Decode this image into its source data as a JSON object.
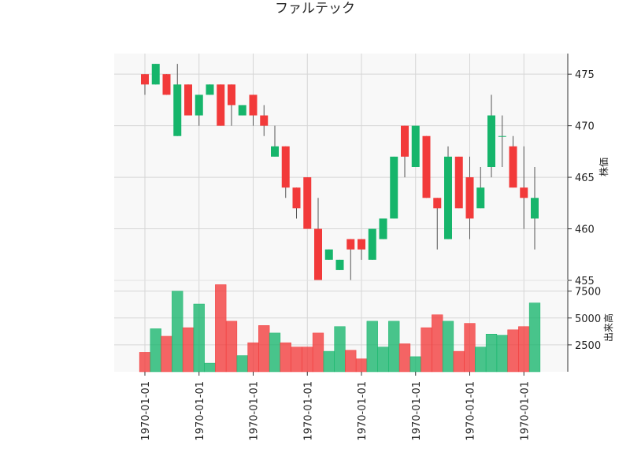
{
  "chart_data": {
    "type": "candlestick",
    "title": "ファルテック",
    "colors": {
      "up": "#16b56b",
      "down": "#f23a3a",
      "wick": "#555555",
      "grid": "#d6d6d6",
      "panel_bg": "#f8f8f8"
    },
    "price_panel": {
      "ylabel": "株価",
      "ylim": [
        455,
        477
      ],
      "ticks": [
        455,
        460,
        465,
        470,
        475
      ]
    },
    "volume_panel": {
      "ylabel": "出来高",
      "ylim": [
        0,
        8500
      ],
      "ticks": [
        2500,
        5000,
        7500
      ],
      "tick_labels": [
        "2500",
        "5000",
        "7500"
      ]
    },
    "x_tick_label": "1970-01-01",
    "x_tick_indices": [
      0,
      5,
      10,
      15,
      20,
      25,
      30,
      35
    ],
    "candles": [
      {
        "o": 475,
        "h": 475,
        "l": 473,
        "c": 474,
        "v": 1800
      },
      {
        "o": 474,
        "h": 476,
        "l": 474,
        "c": 476,
        "v": 4000
      },
      {
        "o": 475,
        "h": 475,
        "l": 473,
        "c": 473,
        "v": 3300
      },
      {
        "o": 469,
        "h": 476,
        "l": 469,
        "c": 474,
        "v": 7500
      },
      {
        "o": 474,
        "h": 474,
        "l": 471,
        "c": 471,
        "v": 4100
      },
      {
        "o": 471,
        "h": 473,
        "l": 470,
        "c": 473,
        "v": 6300
      },
      {
        "o": 473,
        "h": 474,
        "l": 473,
        "c": 474,
        "v": 800
      },
      {
        "o": 474,
        "h": 474,
        "l": 470,
        "c": 470,
        "v": 8100
      },
      {
        "o": 474,
        "h": 474,
        "l": 470,
        "c": 472,
        "v": 4700
      },
      {
        "o": 471,
        "h": 472,
        "l": 471,
        "c": 472,
        "v": 1500
      },
      {
        "o": 473,
        "h": 473,
        "l": 470,
        "c": 471,
        "v": 2700
      },
      {
        "o": 471,
        "h": 472,
        "l": 469,
        "c": 470,
        "v": 4300
      },
      {
        "o": 467,
        "h": 470,
        "l": 467,
        "c": 468,
        "v": 3600
      },
      {
        "o": 468,
        "h": 468,
        "l": 463,
        "c": 464,
        "v": 2700
      },
      {
        "o": 464,
        "h": 464,
        "l": 461,
        "c": 462,
        "v": 2300
      },
      {
        "o": 465,
        "h": 465,
        "l": 460,
        "c": 460,
        "v": 2300
      },
      {
        "o": 460,
        "h": 463,
        "l": 455,
        "c": 455,
        "v": 3600
      },
      {
        "o": 457,
        "h": 458,
        "l": 457,
        "c": 458,
        "v": 1900
      },
      {
        "o": 456,
        "h": 457,
        "l": 456,
        "c": 457,
        "v": 4200
      },
      {
        "o": 459,
        "h": 459,
        "l": 455,
        "c": 458,
        "v": 2000
      },
      {
        "o": 459,
        "h": 459,
        "l": 457,
        "c": 458,
        "v": 1200
      },
      {
        "o": 457,
        "h": 460,
        "l": 457,
        "c": 460,
        "v": 4700
      },
      {
        "o": 459,
        "h": 461,
        "l": 459,
        "c": 461,
        "v": 2300
      },
      {
        "o": 461,
        "h": 467,
        "l": 461,
        "c": 467,
        "v": 4700
      },
      {
        "o": 470,
        "h": 470,
        "l": 465,
        "c": 467,
        "v": 2600
      },
      {
        "o": 466,
        "h": 470,
        "l": 466,
        "c": 470,
        "v": 1400
      },
      {
        "o": 469,
        "h": 469,
        "l": 463,
        "c": 463,
        "v": 4100
      },
      {
        "o": 463,
        "h": 463,
        "l": 458,
        "c": 462,
        "v": 5300
      },
      {
        "o": 459,
        "h": 468,
        "l": 459,
        "c": 467,
        "v": 4700
      },
      {
        "o": 467,
        "h": 467,
        "l": 462,
        "c": 462,
        "v": 1900
      },
      {
        "o": 465,
        "h": 467,
        "l": 459,
        "c": 461,
        "v": 4500
      },
      {
        "o": 462,
        "h": 466,
        "l": 462,
        "c": 464,
        "v": 2300
      },
      {
        "o": 466,
        "h": 473,
        "l": 465,
        "c": 471,
        "v": 3500
      },
      {
        "o": 469,
        "h": 471,
        "l": 466,
        "c": 469,
        "v": 3400
      },
      {
        "o": 468,
        "h": 469,
        "l": 464,
        "c": 464,
        "v": 3900
      },
      {
        "o": 464,
        "h": 468,
        "l": 460,
        "c": 463,
        "v": 4200
      },
      {
        "o": 461,
        "h": 466,
        "l": 458,
        "c": 463,
        "v": 6400
      }
    ]
  }
}
